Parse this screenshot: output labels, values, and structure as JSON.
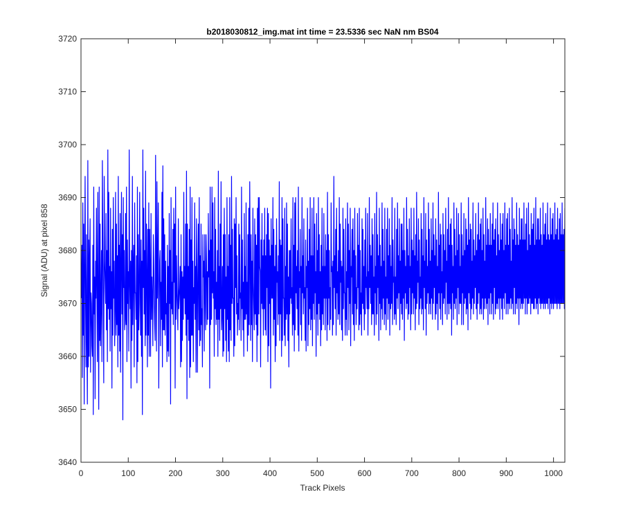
{
  "chart_data": {
    "type": "line",
    "title": "b2018030812_img.mat int time = 23.5336 sec  NaN nm BS04",
    "xlabel": "Track Pixels",
    "ylabel": "Signal (ADU) at pixel 858",
    "xlim": [
      0,
      1024
    ],
    "ylim": [
      3640,
      3720
    ],
    "xticks": [
      "0",
      "100",
      "200",
      "300",
      "400",
      "500",
      "600",
      "700",
      "800",
      "900",
      "1000"
    ],
    "yticks": [
      "3640",
      "3650",
      "3660",
      "3670",
      "3680",
      "3690",
      "3700",
      "3710",
      "3720"
    ],
    "grid": false,
    "series": [
      {
        "color": "#0000ff",
        "x_start": 1,
        "x_step": 1,
        "values": [
          3671,
          3681,
          3656,
          3689,
          3664,
          3685,
          3651,
          3676,
          3694,
          3670,
          3658,
          3683,
          3663,
          3651,
          3697,
          3658,
          3682,
          3660,
          3679,
          3686,
          3657,
          3672,
          3670,
          3662,
          3660,
          3681,
          3649,
          3692,
          3668,
          3675,
          3652,
          3678,
          3671,
          3688,
          3673,
          3659,
          3691,
          3670,
          3650,
          3692,
          3663,
          3685,
          3662,
          3671,
          3680,
          3659,
          3697,
          3681,
          3668,
          3655,
          3694,
          3678,
          3674,
          3670,
          3687,
          3665,
          3680,
          3659,
          3699,
          3669,
          3691,
          3667,
          3677,
          3661,
          3688,
          3669,
          3676,
          3654,
          3684,
          3664,
          3690,
          3671,
          3678,
          3662,
          3669,
          3691,
          3664,
          3685,
          3666,
          3679,
          3658,
          3694,
          3664,
          3681,
          3661,
          3687,
          3657,
          3677,
          3691,
          3668,
          3683,
          3648,
          3690,
          3673,
          3680,
          3665,
          3667,
          3687,
          3666,
          3692,
          3659,
          3682,
          3670,
          3676,
          3661,
          3699,
          3674,
          3669,
          3678,
          3654,
          3680,
          3663,
          3694,
          3666,
          3677,
          3681,
          3658,
          3689,
          3672,
          3672,
          3667,
          3679,
          3655,
          3692,
          3659,
          3683,
          3665,
          3670,
          3691,
          3674,
          3664,
          3682,
          3660,
          3678,
          3649,
          3699,
          3673,
          3688,
          3668,
          3680,
          3662,
          3695,
          3664,
          3685,
          3675,
          3658,
          3684,
          3664,
          3689,
          3660,
          3684,
          3676,
          3660,
          3687,
          3667,
          3675,
          3671,
          3662,
          3683,
          3678,
          3671,
          3666,
          3663,
          3698,
          3675,
          3661,
          3693,
          3671,
          3677,
          3689,
          3654,
          3669,
          3678,
          3680,
          3662,
          3674,
          3667,
          3691,
          3658,
          3696,
          3665,
          3686,
          3665,
          3683,
          3664,
          3678,
          3668,
          3670,
          3659,
          3681,
          3661,
          3677,
          3660,
          3687,
          3670,
          3680,
          3651,
          3690,
          3669,
          3674,
          3668,
          3684,
          3666,
          3688,
          3674,
          3685,
          3654,
          3692,
          3667,
          3679,
          3672,
          3669,
          3665,
          3686,
          3669,
          3671,
          3673,
          3677,
          3658,
          3683,
          3659,
          3676,
          3663,
          3675,
          3667,
          3691,
          3671,
          3677,
          3668,
          3685,
          3664,
          3695,
          3652,
          3685,
          3667,
          3677,
          3663,
          3684,
          3656,
          3692,
          3658,
          3682,
          3664,
          3690,
          3664,
          3678,
          3659,
          3673,
          3670,
          3689,
          3667,
          3677,
          3657,
          3686,
          3676,
          3657,
          3675,
          3685,
          3665,
          3690,
          3662,
          3679,
          3663,
          3685,
          3666,
          3669,
          3658,
          3683,
          3675,
          3678,
          3661,
          3683,
          3672,
          3665,
          3683,
          3678,
          3666,
          3676,
          3667,
          3687,
          3675,
          3680,
          3654,
          3692,
          3666,
          3682,
          3667,
          3692,
          3672,
          3689,
          3671,
          3676,
          3660,
          3690,
          3669,
          3684,
          3666,
          3674,
          3667,
          3680,
          3660,
          3695,
          3667,
          3677,
          3663,
          3685,
          3669,
          3693,
          3665,
          3668,
          3677,
          3660,
          3683,
          3661,
          3688,
          3669,
          3683,
          3663,
          3675,
          3659,
          3690,
          3667,
          3677,
          3661,
          3683,
          3659,
          3690,
          3665,
          3681,
          3663,
          3694,
          3670,
          3684,
          3671,
          3671,
          3660,
          3686,
          3662,
          3685,
          3673,
          3690,
          3668,
          3679,
          3664,
          3670,
          3667,
          3685,
          3665,
          3683,
          3671,
          3672,
          3663,
          3692,
          3669,
          3682,
          3665,
          3674,
          3660,
          3687,
          3667,
          3677,
          3667,
          3689,
          3668,
          3674,
          3661,
          3683,
          3664,
          3688,
          3666,
          3693,
          3679,
          3663,
          3683,
          3666,
          3678,
          3659,
          3688,
          3674,
          3669,
          3665,
          3686,
          3668,
          3683,
          3666,
          3681,
          3659,
          3688,
          3664,
          3690,
          3668,
          3690,
          3677,
          3676,
          3658,
          3682,
          3670,
          3687,
          3669,
          3679,
          3664,
          3682,
          3669,
          3688,
          3665,
          3679,
          3664,
          3683,
          3673,
          3688,
          3659,
          3687,
          3662,
          3682,
          3670,
          3679,
          3654,
          3686,
          3671,
          3681,
          3671,
          3690,
          3664,
          3684,
          3667,
          3677,
          3659,
          3681,
          3662,
          3686,
          3674,
          3676,
          3666,
          3679,
          3668,
          3693,
          3663,
          3682,
          3668,
          3681,
          3660,
          3690,
          3663,
          3686,
          3671,
          3671,
          3664,
          3688,
          3662,
          3677,
          3667,
          3689,
          3668,
          3685,
          3663,
          3675,
          3658,
          3680,
          3668,
          3680,
          3671,
          3686,
          3670,
          3673,
          3664,
          3690,
          3666,
          3681,
          3661,
          3689,
          3665,
          3690,
          3672,
          3677,
          3669,
          3680,
          3664,
          3692,
          3661,
          3676,
          3673,
          3684,
          3666,
          3677,
          3663,
          3690,
          3672,
          3679,
          3668,
          3686,
          3671,
          3673,
          3663,
          3682,
          3661,
          3677,
          3673,
          3688,
          3662,
          3678,
          3666,
          3684,
          3669,
          3690,
          3665,
          3679,
          3667,
          3688,
          3662,
          3679,
          3670,
          3690,
          3667,
          3685,
          3672,
          3676,
          3660,
          3687,
          3668,
          3680,
          3664,
          3690,
          3670,
          3683,
          3667,
          3676,
          3662,
          3681,
          3665,
          3688,
          3668,
          3677,
          3666,
          3687,
          3671,
          3677,
          3665,
          3683,
          3671,
          3680,
          3663,
          3691,
          3666,
          3683,
          3671,
          3680,
          3665,
          3673,
          3667,
          3689,
          3676,
          3677,
          3664,
          3678,
          3666,
          3694,
          3673,
          3679,
          3669,
          3684,
          3664,
          3688,
          3672,
          3676,
          3667,
          3680,
          3668,
          3690,
          3666,
          3685,
          3674,
          3678,
          3665,
          3677,
          3663,
          3688,
          3669,
          3684,
          3672,
          3672,
          3664,
          3686,
          3667,
          3676,
          3664,
          3689,
          3673,
          3685,
          3665,
          3680,
          3670,
          3688,
          3662,
          3677,
          3675,
          3684,
          3668,
          3686,
          3666,
          3680,
          3663,
          3688,
          3670,
          3679,
          3666,
          3673,
          3669,
          3687,
          3673,
          3681,
          3665,
          3688,
          3666,
          3680,
          3668,
          3672,
          3664,
          3686,
          3670,
          3684,
          3669,
          3677,
          3665,
          3682,
          3668,
          3688,
          3673,
          3675,
          3669,
          3687,
          3664,
          3676,
          3669,
          3690,
          3673,
          3681,
          3670,
          3679,
          3666,
          3686,
          3668,
          3683,
          3668,
          3675,
          3664,
          3687,
          3672,
          3677,
          3666,
          3691,
          3668,
          3683,
          3673,
          3679,
          3663,
          3688,
          3670,
          3681,
          3665,
          3677,
          3669,
          3689,
          3667,
          3684,
          3671,
          3678,
          3666,
          3688,
          3668,
          3675,
          3665,
          3684,
          3671,
          3688,
          3667,
          3679,
          3670,
          3686,
          3664,
          3681,
          3669,
          3677,
          3670,
          3690,
          3666,
          3682,
          3674,
          3675,
          3667,
          3688,
          3668,
          3675,
          3666,
          3684,
          3671,
          3689,
          3669,
          3679,
          3672,
          3686,
          3665,
          3678,
          3670,
          3685,
          3668,
          3685,
          3667,
          3680,
          3671,
          3688,
          3663,
          3680,
          3672,
          3677,
          3669,
          3690,
          3670,
          3684,
          3667,
          3679,
          3668,
          3686,
          3673,
          3677,
          3665,
          3688,
          3668,
          3682,
          3672,
          3680,
          3668,
          3688,
          3671,
          3679,
          3665,
          3683,
          3669,
          3691,
          3670,
          3678,
          3674,
          3686,
          3666,
          3682,
          3669,
          3675,
          3671,
          3687,
          3668,
          3684,
          3669,
          3679,
          3665,
          3690,
          3673,
          3678,
          3669,
          3687,
          3664,
          3682,
          3670,
          3677,
          3672,
          3689,
          3668,
          3684,
          3670,
          3678,
          3668,
          3686,
          3671,
          3680,
          3667,
          3689,
          3670,
          3683,
          3673,
          3679,
          3667,
          3686,
          3668,
          3682,
          3670,
          3677,
          3665,
          3691,
          3672,
          3681,
          3669,
          3685,
          3667,
          3683,
          3672,
          3676,
          3666,
          3687,
          3670,
          3683,
          3671,
          3680,
          3668,
          3688,
          3674,
          3678,
          3667,
          3684,
          3670,
          3690,
          3668,
          3681,
          3670,
          3685,
          3669,
          3686,
          3664,
          3681,
          3672,
          3677,
          3667,
          3689,
          3670,
          3684,
          3669,
          3679,
          3671,
          3688,
          3666,
          3680,
          3673,
          3687,
          3668,
          3683,
          3670,
          3677,
          3670,
          3689,
          3666,
          3683,
          3672,
          3679,
          3666,
          3687,
          3670,
          3680,
          3671,
          3686,
          3668,
          3684,
          3669,
          3681,
          3665,
          3690,
          3672,
          3682,
          3670,
          3685,
          3667,
          3684,
          3669,
          3678,
          3671,
          3689,
          3668,
          3682,
          3670,
          3679,
          3673,
          3687,
          3669,
          3680,
          3667,
          3683,
          3670,
          3689,
          3672,
          3682,
          3668,
          3685,
          3669,
          3686,
          3668,
          3680,
          3671,
          3688,
          3667,
          3683,
          3669,
          3678,
          3671,
          3690,
          3669,
          3681,
          3670,
          3686,
          3666,
          3684,
          3671,
          3681,
          3668,
          3687,
          3672,
          3681,
          3668,
          3685,
          3670,
          3689,
          3667,
          3682,
          3673,
          3684,
          3668,
          3686,
          3669,
          3679,
          3670,
          3689,
          3669,
          3683,
          3671,
          3680,
          3667,
          3687,
          3671,
          3682,
          3669,
          3685,
          3667,
          3687,
          3671,
          3680,
          3669,
          3689,
          3672,
          3681,
          3668,
          3686,
          3670,
          3687,
          3668,
          3681,
          3670,
          3688,
          3669,
          3684,
          3671,
          3678,
          3669,
          3690,
          3670,
          3682,
          3668,
          3686,
          3673,
          3684,
          3668,
          3681,
          3670,
          3689,
          3669,
          3683,
          3671,
          3681,
          3666,
          3688,
          3671,
          3682,
          3669,
          3686,
          3670,
          3686,
          3669,
          3682,
          3670,
          3689,
          3671,
          3682,
          3668,
          3685,
          3671,
          3688,
          3668,
          3680,
          3670,
          3689,
          3670,
          3683,
          3671,
          3681,
          3668,
          3687,
          3670,
          3684,
          3670,
          3685,
          3669,
          3688,
          3669,
          3681,
          3671,
          3690,
          3669,
          3682,
          3670,
          3686,
          3668,
          3686,
          3671,
          3682,
          3670,
          3688,
          3669,
          3683,
          3670,
          3681,
          3670,
          3689,
          3669,
          3683,
          3670,
          3685,
          3669,
          3687,
          3670,
          3682,
          3670,
          3689,
          3669,
          3683,
          3671,
          3682,
          3668,
          3688,
          3670,
          3683,
          3669,
          3686,
          3670,
          3687,
          3669,
          3682,
          3670,
          3689,
          3670,
          3683,
          3670,
          3684,
          3669,
          3688,
          3670,
          3682,
          3670,
          3686,
          3669,
          3687,
          3670,
          3683,
          3670,
          3689,
          3670,
          3683,
          3670,
          3684,
          3669,
          3688
        ]
      }
    ]
  }
}
